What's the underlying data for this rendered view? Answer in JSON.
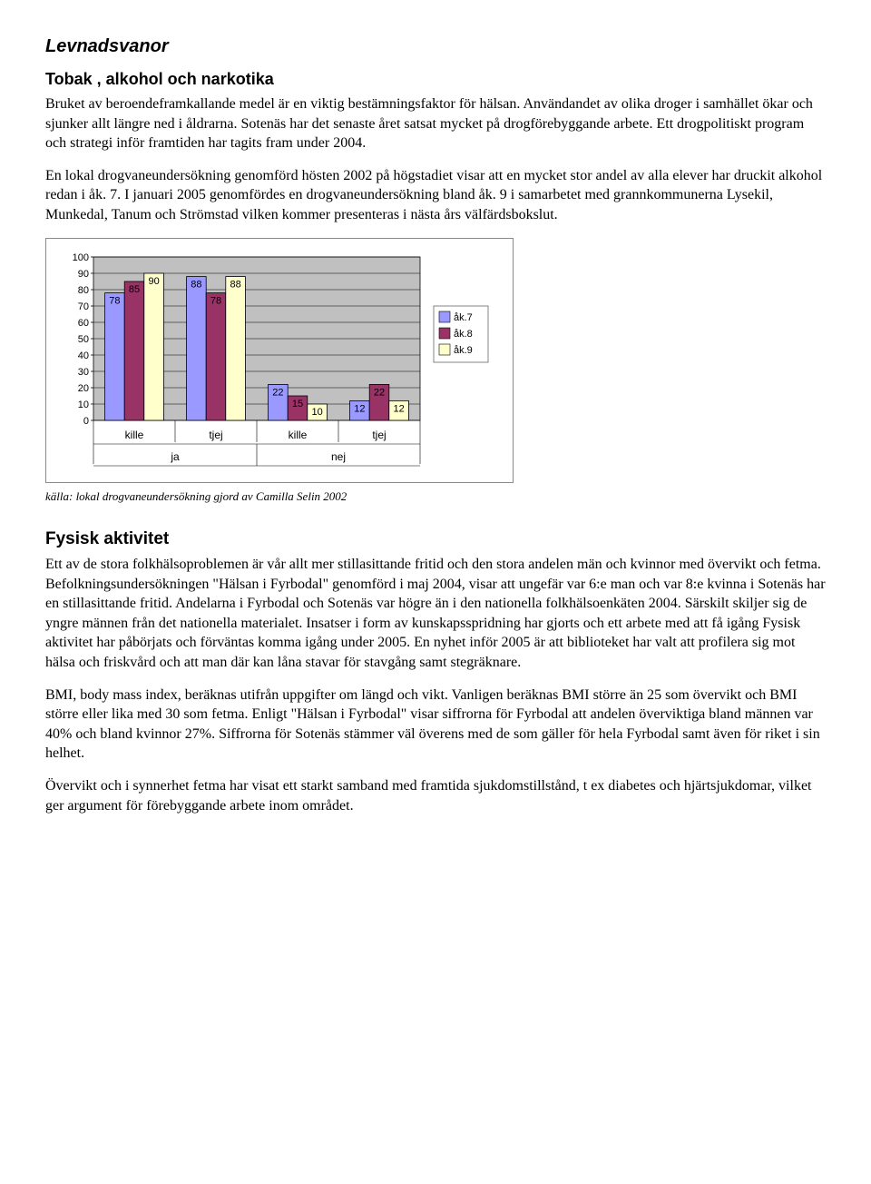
{
  "section1": {
    "title": "Levnadsvanor",
    "subtitle": "Tobak , alkohol och narkotika",
    "para1": "Bruket av beroendeframkallande medel är en viktig bestämningsfaktor för hälsan. Användandet av olika droger i samhället ökar och sjunker allt längre ned i åldrarna. Sotenäs har det senaste året satsat mycket på drogförebyggande arbete. Ett drogpolitiskt program och strategi inför framtiden har tagits fram under 2004.",
    "para2": "En lokal drogvaneundersökning genomförd hösten 2002 på högstadiet visar att en mycket stor andel av alla elever har druckit alkohol redan i åk. 7. I januari 2005 genomfördes en drogvaneundersökning bland åk. 9 i samarbetet med grannkommunerna Lysekil, Munkedal, Tanum och Strömstad vilken kommer presenteras i nästa års välfärdsbokslut."
  },
  "chart": {
    "type": "bar",
    "ylim": [
      0,
      100
    ],
    "ytick_step": 10,
    "groups": [
      "kille",
      "tjej",
      "kille",
      "tjej"
    ],
    "super_groups": [
      "ja",
      "nej"
    ],
    "series": [
      {
        "name": "åk.7",
        "color": "#9999ff",
        "values": [
          78,
          88,
          22,
          12
        ]
      },
      {
        "name": "åk.8",
        "color": "#993366",
        "values": [
          85,
          78,
          15,
          22
        ]
      },
      {
        "name": "åk.9",
        "color": "#ffffcc",
        "values": [
          90,
          88,
          10,
          12
        ]
      }
    ],
    "plot_bg": "#c0c0c0",
    "grid_color": "#000000",
    "axis_fontsize": 11,
    "label_fontsize": 12,
    "bar_label_fontsize": 11
  },
  "caption": "källa: lokal drogvaneundersökning gjord av Camilla Selin 2002",
  "section2": {
    "title": "Fysisk aktivitet",
    "para1": "Ett av de stora folkhälsoproblemen är vår allt mer stillasittande fritid och den stora andelen män och kvinnor med övervikt och fetma. Befolkningsundersökningen \"Hälsan i Fyrbodal\" genomförd i maj 2004, visar att ungefär var 6:e man och var 8:e kvinna i Sotenäs har en stillasittande fritid. Andelarna i Fyrbodal och Sotenäs var högre än i den nationella folkhälsoenkäten 2004. Särskilt skiljer sig de yngre männen från det nationella materialet. Insatser i form av kunskapsspridning har gjorts och ett arbete med att få igång Fysisk aktivitet har påbörjats och förväntas komma igång under 2005. En nyhet inför 2005 är att biblioteket har valt att profilera sig mot hälsa och friskvård och att man där kan låna stavar för stavgång samt stegräknare.",
    "para2": "BMI, body mass index, beräknas utifrån uppgifter om längd och vikt. Vanligen beräknas BMI större än 25 som övervikt och BMI större eller lika med 30 som fetma. Enligt \"Hälsan i Fyrbodal\" visar siffrorna för Fyrbodal att andelen överviktiga bland männen var 40% och bland kvinnor 27%. Siffrorna för Sotenäs stämmer väl överens med de som gäller för hela Fyrbodal samt även för riket i sin helhet.",
    "para3": "Övervikt och i synnerhet fetma har visat ett starkt samband med framtida sjukdomstillstånd, t ex diabetes och hjärtsjukdomar, vilket ger argument för förebyggande arbete inom området."
  }
}
